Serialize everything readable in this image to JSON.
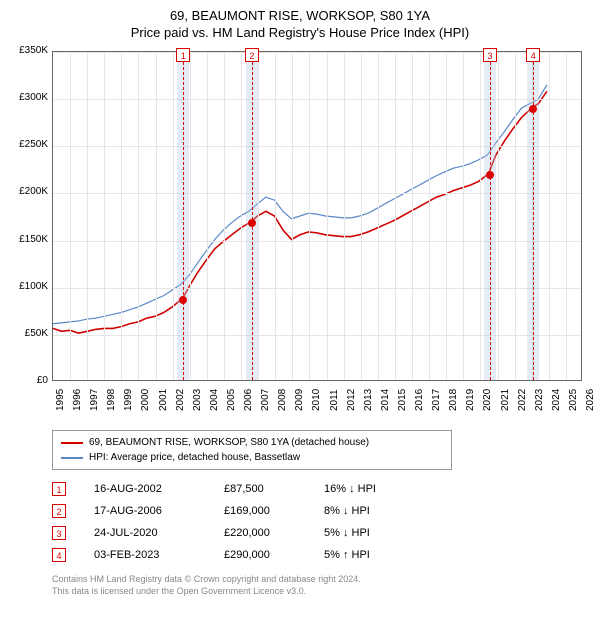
{
  "title": "69, BEAUMONT RISE, WORKSOP, S80 1YA",
  "subtitle": "Price paid vs. HM Land Registry's House Price Index (HPI)",
  "chart": {
    "type": "line",
    "background_color": "#ffffff",
    "grid_color": "#e6e6e6",
    "axis_color": "#666666",
    "x": {
      "min": 1995,
      "max": 2026,
      "tick_step": 1,
      "labels": [
        "1995",
        "1996",
        "1997",
        "1998",
        "1999",
        "2000",
        "2001",
        "2002",
        "2003",
        "2004",
        "2005",
        "2006",
        "2007",
        "2008",
        "2009",
        "2010",
        "2011",
        "2012",
        "2013",
        "2014",
        "2015",
        "2016",
        "2017",
        "2018",
        "2019",
        "2020",
        "2021",
        "2022",
        "2023",
        "2024",
        "2025",
        "2026"
      ]
    },
    "y": {
      "min": 0,
      "max": 350000,
      "tick_step": 50000,
      "labels": [
        "£0",
        "£50K",
        "£100K",
        "£150K",
        "£200K",
        "£250K",
        "£300K",
        "£350K"
      ],
      "label_fontsize": 10
    },
    "marker_band": {
      "color": "rgba(180,200,230,0.35)"
    },
    "marker_line_color": "#d00000",
    "series": [
      {
        "name": "property",
        "label": "69, BEAUMONT RISE, WORKSOP, S80 1YA (detached house)",
        "color": "#d00000",
        "width": 1.6,
        "points": [
          [
            1995.0,
            55000
          ],
          [
            1995.5,
            52000
          ],
          [
            1996.0,
            53000
          ],
          [
            1996.5,
            50000
          ],
          [
            1997.0,
            52000
          ],
          [
            1997.5,
            54000
          ],
          [
            1998.0,
            55000
          ],
          [
            1998.5,
            55000
          ],
          [
            1999.0,
            57000
          ],
          [
            1999.5,
            60000
          ],
          [
            2000.0,
            62000
          ],
          [
            2000.5,
            66000
          ],
          [
            2001.0,
            68000
          ],
          [
            2001.5,
            72000
          ],
          [
            2002.0,
            78000
          ],
          [
            2002.63,
            87500
          ],
          [
            2003.0,
            100000
          ],
          [
            2003.5,
            115000
          ],
          [
            2004.0,
            128000
          ],
          [
            2004.5,
            140000
          ],
          [
            2005.0,
            148000
          ],
          [
            2005.5,
            155000
          ],
          [
            2006.0,
            162000
          ],
          [
            2006.63,
            169000
          ],
          [
            2007.0,
            175000
          ],
          [
            2007.5,
            180000
          ],
          [
            2008.0,
            175000
          ],
          [
            2008.5,
            160000
          ],
          [
            2009.0,
            150000
          ],
          [
            2009.5,
            155000
          ],
          [
            2010.0,
            158000
          ],
          [
            2010.5,
            157000
          ],
          [
            2011.0,
            155000
          ],
          [
            2011.5,
            154000
          ],
          [
            2012.0,
            153000
          ],
          [
            2012.5,
            153000
          ],
          [
            2013.0,
            155000
          ],
          [
            2013.5,
            158000
          ],
          [
            2014.0,
            162000
          ],
          [
            2014.5,
            166000
          ],
          [
            2015.0,
            170000
          ],
          [
            2015.5,
            175000
          ],
          [
            2016.0,
            180000
          ],
          [
            2016.5,
            185000
          ],
          [
            2017.0,
            190000
          ],
          [
            2017.5,
            195000
          ],
          [
            2018.0,
            198000
          ],
          [
            2018.5,
            202000
          ],
          [
            2019.0,
            205000
          ],
          [
            2019.5,
            208000
          ],
          [
            2020.0,
            212000
          ],
          [
            2020.56,
            220000
          ],
          [
            2021.0,
            240000
          ],
          [
            2021.5,
            255000
          ],
          [
            2022.0,
            268000
          ],
          [
            2022.5,
            280000
          ],
          [
            2023.09,
            290000
          ],
          [
            2023.5,
            295000
          ],
          [
            2024.0,
            308000
          ]
        ]
      },
      {
        "name": "hpi",
        "label": "HPI: Average price, detached house, Bassetlaw",
        "color": "#5b87c7",
        "width": 1.2,
        "points": [
          [
            1995.0,
            60000
          ],
          [
            1995.5,
            61000
          ],
          [
            1996.0,
            62000
          ],
          [
            1996.5,
            63000
          ],
          [
            1997.0,
            65000
          ],
          [
            1997.5,
            66000
          ],
          [
            1998.0,
            68000
          ],
          [
            1998.5,
            70000
          ],
          [
            1999.0,
            72000
          ],
          [
            1999.5,
            75000
          ],
          [
            2000.0,
            78000
          ],
          [
            2000.5,
            82000
          ],
          [
            2001.0,
            86000
          ],
          [
            2001.5,
            90000
          ],
          [
            2002.0,
            96000
          ],
          [
            2002.5,
            102000
          ],
          [
            2003.0,
            112000
          ],
          [
            2003.5,
            125000
          ],
          [
            2004.0,
            138000
          ],
          [
            2004.5,
            150000
          ],
          [
            2005.0,
            160000
          ],
          [
            2005.5,
            168000
          ],
          [
            2006.0,
            175000
          ],
          [
            2006.5,
            180000
          ],
          [
            2007.0,
            188000
          ],
          [
            2007.5,
            195000
          ],
          [
            2008.0,
            192000
          ],
          [
            2008.5,
            180000
          ],
          [
            2009.0,
            172000
          ],
          [
            2009.5,
            175000
          ],
          [
            2010.0,
            178000
          ],
          [
            2010.5,
            177000
          ],
          [
            2011.0,
            175000
          ],
          [
            2011.5,
            174000
          ],
          [
            2012.0,
            173000
          ],
          [
            2012.5,
            173000
          ],
          [
            2013.0,
            175000
          ],
          [
            2013.5,
            178000
          ],
          [
            2014.0,
            183000
          ],
          [
            2014.5,
            188000
          ],
          [
            2015.0,
            193000
          ],
          [
            2015.5,
            198000
          ],
          [
            2016.0,
            203000
          ],
          [
            2016.5,
            208000
          ],
          [
            2017.0,
            213000
          ],
          [
            2017.5,
            218000
          ],
          [
            2018.0,
            222000
          ],
          [
            2018.5,
            226000
          ],
          [
            2019.0,
            228000
          ],
          [
            2019.5,
            231000
          ],
          [
            2020.0,
            235000
          ],
          [
            2020.5,
            240000
          ],
          [
            2021.0,
            253000
          ],
          [
            2021.5,
            265000
          ],
          [
            2022.0,
            278000
          ],
          [
            2022.5,
            290000
          ],
          [
            2023.0,
            295000
          ],
          [
            2023.5,
            300000
          ],
          [
            2024.0,
            315000
          ]
        ]
      }
    ],
    "sale_markers": [
      {
        "n": "1",
        "year": 2002.63,
        "price": 87500
      },
      {
        "n": "2",
        "year": 2006.63,
        "price": 169000
      },
      {
        "n": "3",
        "year": 2020.56,
        "price": 220000
      },
      {
        "n": "4",
        "year": 2023.09,
        "price": 290000
      }
    ]
  },
  "legend": {
    "property": "69, BEAUMONT RISE, WORKSOP, S80 1YA (detached house)",
    "hpi": "HPI: Average price, detached house, Bassetlaw"
  },
  "sales": [
    {
      "n": "1",
      "date": "16-AUG-2002",
      "price": "£87,500",
      "pct": "16% ↓ HPI"
    },
    {
      "n": "2",
      "date": "17-AUG-2006",
      "price": "£169,000",
      "pct": "8% ↓ HPI"
    },
    {
      "n": "3",
      "date": "24-JUL-2020",
      "price": "£220,000",
      "pct": "5% ↓ HPI"
    },
    {
      "n": "4",
      "date": "03-FEB-2023",
      "price": "£290,000",
      "pct": "5% ↑ HPI"
    }
  ],
  "footer": {
    "line1": "Contains HM Land Registry data © Crown copyright and database right 2024.",
    "line2": "This data is licensed under the Open Government Licence v3.0."
  }
}
